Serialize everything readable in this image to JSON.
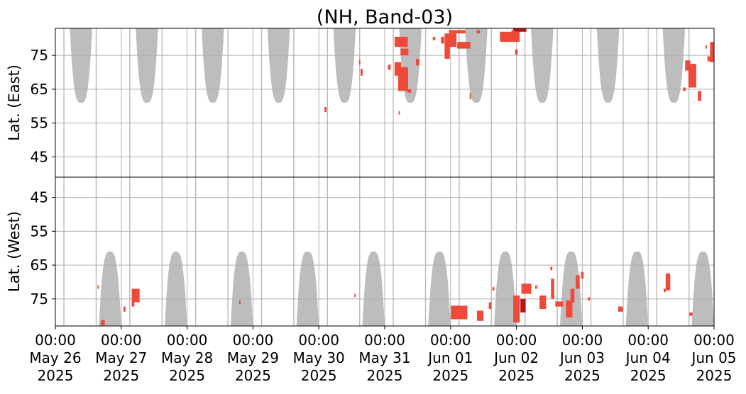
{
  "chart_data": {
    "type": "heatmap",
    "title": "(NH, Band-03)",
    "grid": true,
    "panels": [
      {
        "name": "east",
        "ylabel": "Lat. (East)",
        "ylim": [
          39,
          83
        ],
        "yticks": [
          45,
          55,
          65,
          75
        ],
        "y_inverted": false
      },
      {
        "name": "west",
        "ylabel": "Lat. (West)",
        "ylim": [
          83,
          39
        ],
        "yticks": [
          75,
          65,
          55,
          45
        ],
        "y_inverted": true
      }
    ],
    "xlim": [
      0,
      10
    ],
    "xticks": [
      {
        "day": 0,
        "time": "00:00",
        "date": "May 26",
        "year": "2025"
      },
      {
        "day": 1,
        "time": "00:00",
        "date": "May 27",
        "year": "2025"
      },
      {
        "day": 2,
        "time": "00:00",
        "date": "May 28",
        "year": "2025"
      },
      {
        "day": 3,
        "time": "00:00",
        "date": "May 29",
        "year": "2025"
      },
      {
        "day": 4,
        "time": "00:00",
        "date": "May 30",
        "year": "2025"
      },
      {
        "day": 5,
        "time": "00:00",
        "date": "May 31",
        "year": "2025"
      },
      {
        "day": 6,
        "time": "00:00",
        "date": "Jun 01",
        "year": "2025"
      },
      {
        "day": 7,
        "time": "00:00",
        "date": "Jun 02",
        "year": "2025"
      },
      {
        "day": 8,
        "time": "00:00",
        "date": "Jun 03",
        "year": "2025"
      },
      {
        "day": 9,
        "time": "00:00",
        "date": "Jun 04",
        "year": "2025"
      },
      {
        "day": 10,
        "time": "00:00",
        "date": "Jun 05",
        "year": "2025"
      }
    ],
    "colors": {
      "no_data": "#bdbdbd",
      "low": "#f7a08c",
      "mid": "#ee4a3a",
      "high": "#b81414",
      "grid": "#b0b0b0"
    },
    "no_data_regions": [
      {
        "panel": "east",
        "center_day": 0.39,
        "half_width_day": 0.17,
        "lat_edge": 61
      },
      {
        "panel": "east",
        "center_day": 1.39,
        "half_width_day": 0.17,
        "lat_edge": 61
      },
      {
        "panel": "east",
        "center_day": 2.39,
        "half_width_day": 0.17,
        "lat_edge": 61
      },
      {
        "panel": "east",
        "center_day": 3.39,
        "half_width_day": 0.17,
        "lat_edge": 61
      },
      {
        "panel": "east",
        "center_day": 4.39,
        "half_width_day": 0.17,
        "lat_edge": 61
      },
      {
        "panel": "east",
        "center_day": 5.39,
        "half_width_day": 0.17,
        "lat_edge": 61
      },
      {
        "panel": "east",
        "center_day": 6.39,
        "half_width_day": 0.17,
        "lat_edge": 61
      },
      {
        "panel": "east",
        "center_day": 7.39,
        "half_width_day": 0.17,
        "lat_edge": 61
      },
      {
        "panel": "east",
        "center_day": 8.39,
        "half_width_day": 0.17,
        "lat_edge": 61
      },
      {
        "panel": "east",
        "center_day": 9.39,
        "half_width_day": 0.17,
        "lat_edge": 61
      },
      {
        "panel": "west",
        "center_day": 0.83,
        "half_width_day": 0.17,
        "lat_edge": 61
      },
      {
        "panel": "west",
        "center_day": 1.83,
        "half_width_day": 0.17,
        "lat_edge": 61
      },
      {
        "panel": "west",
        "center_day": 2.83,
        "half_width_day": 0.17,
        "lat_edge": 61
      },
      {
        "panel": "west",
        "center_day": 3.83,
        "half_width_day": 0.17,
        "lat_edge": 61
      },
      {
        "panel": "west",
        "center_day": 4.83,
        "half_width_day": 0.17,
        "lat_edge": 61
      },
      {
        "panel": "west",
        "center_day": 5.83,
        "half_width_day": 0.17,
        "lat_edge": 61
      },
      {
        "panel": "west",
        "center_day": 6.83,
        "half_width_day": 0.17,
        "lat_edge": 61
      },
      {
        "panel": "west",
        "center_day": 7.83,
        "half_width_day": 0.17,
        "lat_edge": 61
      },
      {
        "panel": "west",
        "center_day": 8.83,
        "half_width_day": 0.17,
        "lat_edge": 61
      },
      {
        "panel": "west",
        "center_day": 9.83,
        "half_width_day": 0.17,
        "lat_edge": 61
      }
    ],
    "no_data_lines_day": [
      0.13,
      0.62,
      1.13,
      1.62,
      2.13,
      2.62,
      3.13,
      3.62,
      4.13,
      4.62,
      5.13,
      5.62,
      6.13,
      6.62,
      7.13,
      7.62,
      8.13,
      8.62,
      9.13,
      9.62
    ],
    "activity": [
      {
        "panel": "east",
        "day": 4.1,
        "lat": 59,
        "width_day": 0.03,
        "height_lat": 1.5,
        "level": "mid"
      },
      {
        "panel": "east",
        "day": 4.65,
        "lat": 70,
        "width_day": 0.03,
        "height_lat": 2,
        "level": "mid"
      },
      {
        "panel": "east",
        "day": 4.62,
        "lat": 73,
        "width_day": 0.02,
        "height_lat": 1.5,
        "level": "mid"
      },
      {
        "panel": "east",
        "day": 5.28,
        "lat": 68,
        "width_day": 0.15,
        "height_lat": 7,
        "level": "mid"
      },
      {
        "panel": "east",
        "day": 5.2,
        "lat": 71,
        "width_day": 0.1,
        "height_lat": 4,
        "level": "mid"
      },
      {
        "panel": "east",
        "day": 5.3,
        "lat": 76,
        "width_day": 0.12,
        "height_lat": 2,
        "level": "mid"
      },
      {
        "panel": "east",
        "day": 5.25,
        "lat": 79,
        "width_day": 0.2,
        "height_lat": 3,
        "level": "mid"
      },
      {
        "panel": "east",
        "day": 5.5,
        "lat": 73,
        "width_day": 0.05,
        "height_lat": 2,
        "level": "mid"
      },
      {
        "panel": "east",
        "day": 5.07,
        "lat": 71.5,
        "width_day": 0.04,
        "height_lat": 1.5,
        "level": "mid"
      },
      {
        "panel": "east",
        "day": 5.22,
        "lat": 58,
        "width_day": 0.02,
        "height_lat": 1,
        "level": "mid"
      },
      {
        "panel": "east",
        "day": 5.75,
        "lat": 80,
        "width_day": 0.04,
        "height_lat": 1,
        "level": "mid"
      },
      {
        "panel": "east",
        "day": 5.95,
        "lat": 76,
        "width_day": 0.08,
        "height_lat": 4,
        "level": "mid"
      },
      {
        "panel": "east",
        "day": 6.0,
        "lat": 79.5,
        "width_day": 0.18,
        "height_lat": 4,
        "level": "mid"
      },
      {
        "panel": "east",
        "day": 6.2,
        "lat": 78,
        "width_day": 0.2,
        "height_lat": 2,
        "level": "mid"
      },
      {
        "panel": "east",
        "day": 6.1,
        "lat": 82,
        "width_day": 0.25,
        "height_lat": 1,
        "level": "mid"
      },
      {
        "panel": "east",
        "day": 5.88,
        "lat": 79.5,
        "width_day": 0.05,
        "height_lat": 2,
        "level": "mid"
      },
      {
        "panel": "east",
        "day": 6.42,
        "lat": 82,
        "width_day": 0.05,
        "height_lat": 1,
        "level": "mid"
      },
      {
        "panel": "east",
        "day": 6.9,
        "lat": 80.5,
        "width_day": 0.3,
        "height_lat": 3,
        "level": "mid"
      },
      {
        "panel": "east",
        "day": 7.05,
        "lat": 82.5,
        "width_day": 0.2,
        "height_lat": 1,
        "level": "high"
      },
      {
        "panel": "east",
        "day": 7.0,
        "lat": 76,
        "width_day": 0.04,
        "height_lat": 1.5,
        "level": "mid"
      },
      {
        "panel": "east",
        "day": 6.95,
        "lat": 82,
        "width_day": 0.05,
        "height_lat": 1,
        "level": "mid"
      },
      {
        "panel": "east",
        "day": 6.3,
        "lat": 63,
        "width_day": 0.02,
        "height_lat": 2,
        "level": "mid"
      },
      {
        "panel": "east",
        "day": 5.37,
        "lat": 64.5,
        "width_day": 0.06,
        "height_lat": 1,
        "level": "mid"
      },
      {
        "panel": "east",
        "day": 9.55,
        "lat": 65,
        "width_day": 0.04,
        "height_lat": 1,
        "level": "mid"
      },
      {
        "panel": "east",
        "day": 9.67,
        "lat": 69,
        "width_day": 0.12,
        "height_lat": 7,
        "level": "mid"
      },
      {
        "panel": "east",
        "day": 9.6,
        "lat": 72,
        "width_day": 0.08,
        "height_lat": 3,
        "level": "mid"
      },
      {
        "panel": "east",
        "day": 9.78,
        "lat": 63,
        "width_day": 0.05,
        "height_lat": 3,
        "level": "mid"
      },
      {
        "panel": "east",
        "day": 9.97,
        "lat": 76,
        "width_day": 0.06,
        "height_lat": 6,
        "level": "mid"
      },
      {
        "panel": "east",
        "day": 9.93,
        "lat": 74,
        "width_day": 0.06,
        "height_lat": 1.5,
        "level": "mid"
      },
      {
        "panel": "east",
        "day": 9.88,
        "lat": 77.5,
        "width_day": 0.02,
        "height_lat": 1,
        "level": "mid"
      },
      {
        "panel": "west",
        "day": 0.72,
        "lat": 82,
        "width_day": 0.06,
        "height_lat": 1.5,
        "level": "mid"
      },
      {
        "panel": "west",
        "day": 1.05,
        "lat": 78,
        "width_day": 0.03,
        "height_lat": 1.5,
        "level": "mid"
      },
      {
        "panel": "west",
        "day": 1.22,
        "lat": 74,
        "width_day": 0.12,
        "height_lat": 4,
        "level": "mid"
      },
      {
        "panel": "west",
        "day": 1.18,
        "lat": 76.5,
        "width_day": 0.04,
        "height_lat": 1.5,
        "level": "mid"
      },
      {
        "panel": "west",
        "day": 0.65,
        "lat": 71.5,
        "width_day": 0.02,
        "height_lat": 1,
        "level": "mid"
      },
      {
        "panel": "west",
        "day": 2.8,
        "lat": 76,
        "width_day": 0.02,
        "height_lat": 1,
        "level": "mid"
      },
      {
        "panel": "west",
        "day": 6.13,
        "lat": 79,
        "width_day": 0.25,
        "height_lat": 4,
        "level": "mid"
      },
      {
        "panel": "west",
        "day": 6.45,
        "lat": 80,
        "width_day": 0.1,
        "height_lat": 3,
        "level": "mid"
      },
      {
        "panel": "west",
        "day": 6.6,
        "lat": 77,
        "width_day": 0.04,
        "height_lat": 2,
        "level": "mid"
      },
      {
        "panel": "west",
        "day": 6.65,
        "lat": 72,
        "width_day": 0.03,
        "height_lat": 1,
        "level": "mid"
      },
      {
        "panel": "west",
        "day": 7.0,
        "lat": 78,
        "width_day": 0.1,
        "height_lat": 8,
        "level": "mid"
      },
      {
        "panel": "west",
        "day": 7.1,
        "lat": 77,
        "width_day": 0.08,
        "height_lat": 4,
        "level": "high"
      },
      {
        "panel": "west",
        "day": 7.15,
        "lat": 72,
        "width_day": 0.15,
        "height_lat": 3,
        "level": "mid"
      },
      {
        "panel": "west",
        "day": 7.4,
        "lat": 76,
        "width_day": 0.1,
        "height_lat": 4,
        "level": "mid"
      },
      {
        "panel": "west",
        "day": 7.55,
        "lat": 72,
        "width_day": 0.05,
        "height_lat": 6,
        "level": "mid"
      },
      {
        "panel": "west",
        "day": 7.3,
        "lat": 71.5,
        "width_day": 0.03,
        "height_lat": 1,
        "level": "mid"
      },
      {
        "panel": "west",
        "day": 7.65,
        "lat": 76.5,
        "width_day": 0.12,
        "height_lat": 1.5,
        "level": "mid"
      },
      {
        "panel": "west",
        "day": 7.53,
        "lat": 66,
        "width_day": 0.03,
        "height_lat": 1,
        "level": "mid"
      },
      {
        "panel": "west",
        "day": 7.8,
        "lat": 78,
        "width_day": 0.1,
        "height_lat": 5,
        "level": "mid"
      },
      {
        "panel": "west",
        "day": 7.85,
        "lat": 74,
        "width_day": 0.06,
        "height_lat": 4,
        "level": "mid"
      },
      {
        "panel": "west",
        "day": 7.93,
        "lat": 70,
        "width_day": 0.06,
        "height_lat": 4,
        "level": "mid"
      },
      {
        "panel": "west",
        "day": 8.0,
        "lat": 68,
        "width_day": 0.04,
        "height_lat": 2,
        "level": "mid"
      },
      {
        "panel": "west",
        "day": 8.1,
        "lat": 75,
        "width_day": 0.03,
        "height_lat": 1,
        "level": "mid"
      },
      {
        "panel": "west",
        "day": 8.58,
        "lat": 78,
        "width_day": 0.07,
        "height_lat": 1.5,
        "level": "mid"
      },
      {
        "panel": "west",
        "day": 9.3,
        "lat": 70,
        "width_day": 0.07,
        "height_lat": 5,
        "level": "mid"
      },
      {
        "panel": "west",
        "day": 9.25,
        "lat": 72.5,
        "width_day": 0.03,
        "height_lat": 1,
        "level": "mid"
      },
      {
        "panel": "west",
        "day": 9.65,
        "lat": 79.5,
        "width_day": 0.05,
        "height_lat": 1,
        "level": "mid"
      },
      {
        "panel": "west",
        "day": 4.55,
        "lat": 74,
        "width_day": 0.02,
        "height_lat": 1,
        "level": "mid"
      }
    ]
  }
}
